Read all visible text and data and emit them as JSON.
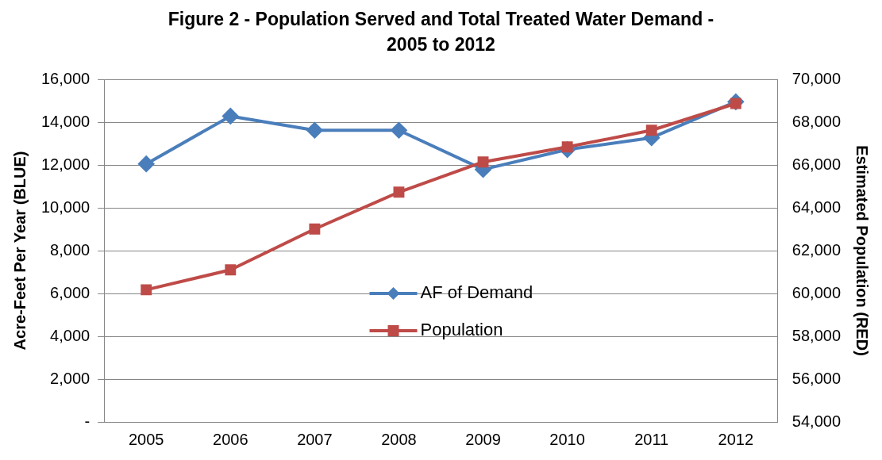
{
  "chart_data": {
    "type": "line",
    "title": "Figure 2 - Population Served and Total Treated Water Demand - 2005 to 2012",
    "ylabel": "Acre-Feet Per Year (BLUE)",
    "y2label": "Estimated Population (RED)",
    "categories": [
      "2005",
      "2006",
      "2007",
      "2008",
      "2009",
      "2010",
      "2011",
      "2012"
    ],
    "series": [
      {
        "name": "AF of Demand",
        "color": "#4a7ebb",
        "marker": "diamond",
        "values": [
          12050,
          14280,
          13620,
          13620,
          11790,
          12720,
          13270,
          14950
        ]
      },
      {
        "name": "Population",
        "color": "#be4b48",
        "marker": "square",
        "axis": "y2",
        "values": [
          60170,
          61100,
          63010,
          64730,
          66140,
          66840,
          67620,
          68870
        ]
      }
    ],
    "ylim": [
      0,
      16000
    ],
    "yticks": [
      {
        "value": 0,
        "label": "-"
      },
      {
        "value": 2000,
        "label": "2,000"
      },
      {
        "value": 4000,
        "label": "4,000"
      },
      {
        "value": 6000,
        "label": "6,000"
      },
      {
        "value": 8000,
        "label": "8,000"
      },
      {
        "value": 10000,
        "label": "10,000"
      },
      {
        "value": 12000,
        "label": "12,000"
      },
      {
        "value": 14000,
        "label": "14,000"
      },
      {
        "value": 16000,
        "label": "16,000"
      }
    ],
    "y2lim": [
      54000,
      70000
    ],
    "y2ticks": [
      {
        "value": 54000,
        "label": "54,000"
      },
      {
        "value": 56000,
        "label": "56,000"
      },
      {
        "value": 58000,
        "label": "58,000"
      },
      {
        "value": 60000,
        "label": "60,000"
      },
      {
        "value": 62000,
        "label": "62,000"
      },
      {
        "value": 64000,
        "label": "64,000"
      },
      {
        "value": 66000,
        "label": "66,000"
      },
      {
        "value": 68000,
        "label": "68,000"
      },
      {
        "value": 70000,
        "label": "70,000"
      }
    ],
    "grid": "y",
    "legend": "bottom",
    "line_style": "solid"
  }
}
